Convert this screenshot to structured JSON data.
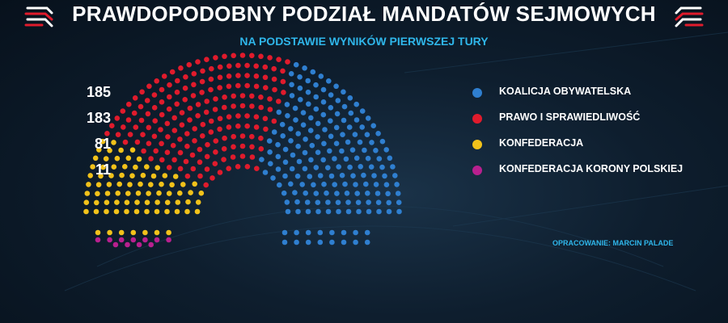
{
  "header": {
    "title": "PRAWDOPODOBNY PODZIAŁ MANDATÓW SEJMOWYCH",
    "subtitle": "NA PODSTAWIE WYNIKÓW PIERWSZEJ TURY"
  },
  "source": "OPRACOWANIE: MARCIN PALADE",
  "colors": {
    "blue": "#2f7fd0",
    "red": "#e01b2c",
    "yellow": "#f2c21a",
    "magenta": "#b8208f",
    "accent": "#2fb6ea"
  },
  "chart_data": {
    "type": "hemicycle",
    "total_seats": 460,
    "parties": [
      {
        "name": "KOALICJA OBYWATELSKA",
        "seats": 185,
        "color": "#2f7fd0"
      },
      {
        "name": "PRAWO I SPRAWIEDLIWOŚĆ",
        "seats": 183,
        "color": "#e01b2c"
      },
      {
        "name": "KONFEDERACJA",
        "seats": 81,
        "color": "#f2c21a"
      },
      {
        "name": "KONFEDERACJA KORONY POLSKIEJ",
        "seats": 11,
        "color": "#b8208f"
      }
    ]
  }
}
